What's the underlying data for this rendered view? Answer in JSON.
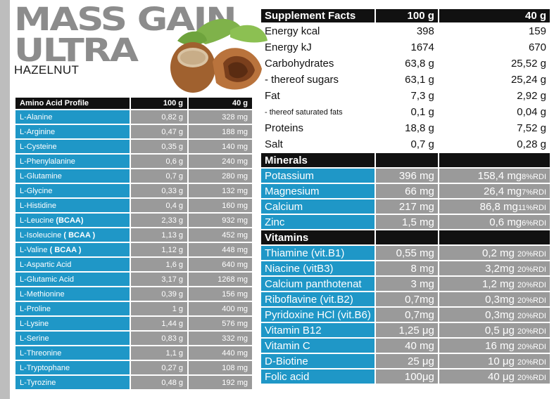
{
  "brand": {
    "line1": "MASS GAIN",
    "line2": "ULTRA",
    "flavor": "HAZELNUT"
  },
  "amino": {
    "headers": [
      "Amino Acid Profile",
      "100 g",
      "40 g"
    ],
    "rows": [
      {
        "name": "L-Alanine",
        "v100": "0,82 g",
        "v40": "328 mg"
      },
      {
        "name": "L-Arginine",
        "v100": "0,47 g",
        "v40": "188 mg"
      },
      {
        "name": "L-Cysteine",
        "v100": "0,35 g",
        "v40": "140 mg"
      },
      {
        "name": "L-Phenylalanine",
        "v100": "0,6 g",
        "v40": "240 mg"
      },
      {
        "name": "L-Glutamine",
        "v100": "0,7 g",
        "v40": "280 mg"
      },
      {
        "name": "L-Glycine",
        "v100": "0,33 g",
        "v40": "132 mg"
      },
      {
        "name": "L-Histidine",
        "v100": "0,4 g",
        "v40": "160 mg"
      },
      {
        "name": "L-Leucine",
        "tag": "(BCAA)",
        "v100": "2,33 g",
        "v40": "932 mg"
      },
      {
        "name": "L-Isoleucine",
        "tag": "( BCAA )",
        "v100": "1,13 g",
        "v40": "452 mg"
      },
      {
        "name": "L-Valine",
        "tag": "( BCAA )",
        "v100": "1,12 g",
        "v40": "448 mg"
      },
      {
        "name": "L-Aspartic Acid",
        "v100": "1,6 g",
        "v40": "640 mg"
      },
      {
        "name": "L-Glutamic Acid",
        "v100": "3,17 g",
        "v40": "1268 mg"
      },
      {
        "name": "L-Methionine",
        "v100": "0,39 g",
        "v40": "156 mg"
      },
      {
        "name": "L-Proline",
        "v100": "1 g",
        "v40": "400 mg"
      },
      {
        "name": "L-Lysine",
        "v100": "1,44 g",
        "v40": "576 mg"
      },
      {
        "name": "L-Serine",
        "v100": "0,83 g",
        "v40": "332 mg"
      },
      {
        "name": "L-Threonine",
        "v100": "1,1 g",
        "v40": "440 mg"
      },
      {
        "name": "L-Tryptophane",
        "v100": "0,27 g",
        "v40": "108 mg"
      },
      {
        "name": "L-Tyrozine",
        "v100": "0,48 g",
        "v40": "192 mg"
      }
    ]
  },
  "facts": {
    "headers": [
      "Supplement Facts",
      "100 g",
      "40 g"
    ],
    "rows": [
      {
        "name": "Energy  kcal",
        "v100": "398",
        "v40": "159"
      },
      {
        "name": "Energy  kJ",
        "v100": "1674",
        "v40": "670"
      },
      {
        "name": "Carbohydrates",
        "v100": "63,8 g",
        "v40": "25,52 g"
      },
      {
        "name": "- thereof sugars",
        "v100": "63,1 g",
        "v40": "25,24 g"
      },
      {
        "name": "Fat",
        "v100": "7,3 g",
        "v40": "2,92 g"
      },
      {
        "name": "- thereof saturated fats",
        "v100": "0,1 g",
        "v40": "0,04 g",
        "small": true
      },
      {
        "name": "Proteins",
        "v100": "18,8 g",
        "v40": "7,52 g"
      },
      {
        "name": "Salt",
        "v100": "0,7 g",
        "v40": "0,28 g"
      }
    ]
  },
  "minerals": {
    "title": "Minerals",
    "rows": [
      {
        "name": "Potassium",
        "v100": "396 mg",
        "v40": "158,4 mg",
        "rdi": "8%RDI"
      },
      {
        "name": "Magnesium",
        "v100": "66 mg",
        "v40": "26,4 mg",
        "rdi": "7%RDI"
      },
      {
        "name": "Calcium",
        "v100": "217 mg",
        "v40": "86,8 mg",
        "rdi": "11%RDI"
      },
      {
        "name": "Zinc",
        "v100": "1,5 mg",
        "v40": "0,6 mg",
        "rdi": "6%RDI"
      }
    ]
  },
  "vitamins": {
    "title": "Vitamins",
    "rows": [
      {
        "name": "Thiamine (vit.B1)",
        "v100": "0,55 mg",
        "v40": "0,2 mg",
        "rdi": "20%RDI"
      },
      {
        "name": "Niacine (vitB3)",
        "v100": "8 mg",
        "v40": "3,2mg",
        "rdi": "20%RDI"
      },
      {
        "name": "Calcium panthotenat",
        "v100": "3 mg",
        "v40": "1,2 mg",
        "rdi": "20%RDI"
      },
      {
        "name": "Riboflavine (vit.B2)",
        "v100": "0,7mg",
        "v40": "0,3mg",
        "rdi": "20%RDI"
      },
      {
        "name": "Pyridoxine HCl (vit.B6)",
        "v100": "0,7mg",
        "v40": "0,3mg",
        "rdi": "20%RDI"
      },
      {
        "name": "Vitamin B12",
        "v100": "1,25 μg",
        "v40": "0,5 μg",
        "rdi": "20%RDI"
      },
      {
        "name": "Vitamin C",
        "v100": "40 mg",
        "v40": "16 mg",
        "rdi": "20%RDI"
      },
      {
        "name": "D-Biotine",
        "v100": "25 μg",
        "v40": "10 μg",
        "rdi": "20%RDI"
      },
      {
        "name": "Folic acid",
        "v100": "100μg",
        "v40": "40 μg",
        "rdi": "20%RDI"
      }
    ]
  }
}
